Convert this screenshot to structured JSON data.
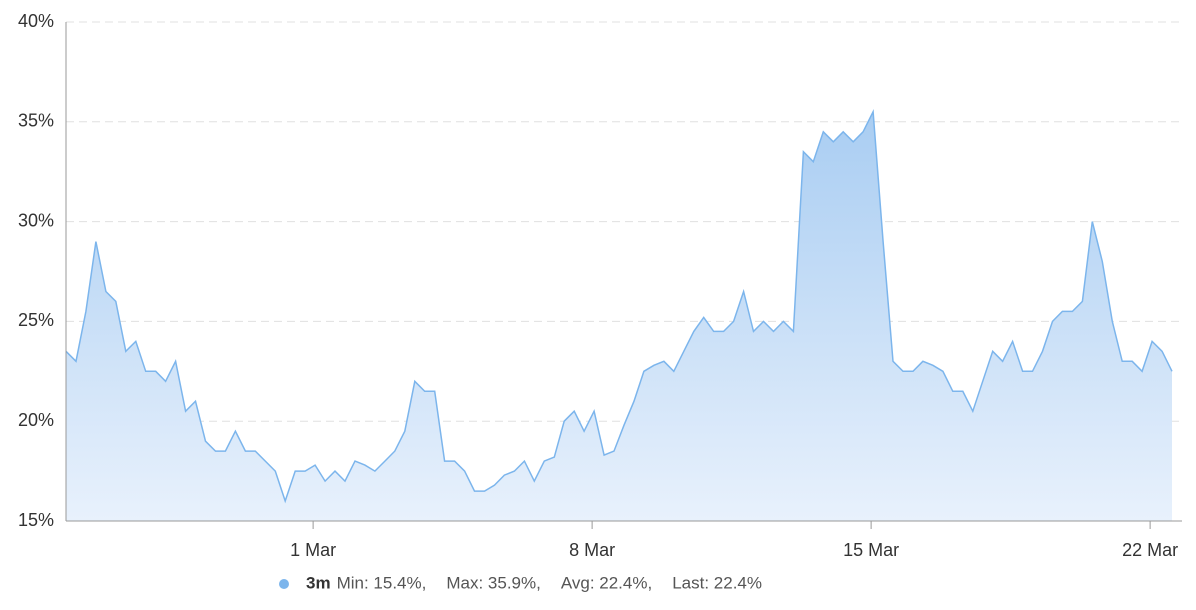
{
  "chart_data": {
    "type": "area",
    "x": [
      -6.2,
      -5.95,
      -5.7,
      -5.45,
      -5.2,
      -4.95,
      -4.7,
      -4.45,
      -4.2,
      -3.95,
      -3.7,
      -3.45,
      -3.2,
      -2.95,
      -2.7,
      -2.45,
      -2.2,
      -1.95,
      -1.7,
      -1.45,
      -1.2,
      -0.95,
      -0.7,
      -0.45,
      -0.2,
      0.05,
      0.3,
      0.55,
      0.8,
      1.05,
      1.3,
      1.55,
      1.8,
      2.05,
      2.3,
      2.55,
      2.8,
      3.05,
      3.3,
      3.55,
      3.8,
      4.05,
      4.3,
      4.55,
      4.8,
      5.05,
      5.3,
      5.55,
      5.8,
      6.05,
      6.3,
      6.55,
      6.8,
      7.05,
      7.3,
      7.55,
      7.8,
      8.05,
      8.3,
      8.55,
      8.8,
      9.05,
      9.3,
      9.55,
      9.8,
      10.05,
      10.3,
      10.55,
      10.8,
      11.05,
      11.3,
      11.55,
      11.8,
      12.05,
      12.3,
      12.55,
      12.8,
      13.05,
      13.3,
      13.55,
      13.8,
      14.05,
      14.3,
      14.55,
      14.8,
      15.05,
      15.3,
      15.55,
      15.8,
      16.05,
      16.3,
      16.55,
      16.8,
      17.05,
      17.3,
      17.55,
      17.8,
      18.05,
      18.3,
      18.55,
      18.8,
      19.05,
      19.3,
      19.55,
      19.8,
      20.05,
      20.3,
      20.55,
      20.8,
      21.05,
      21.3,
      21.55
    ],
    "series": [
      {
        "name": "3m",
        "color": "#7cb5ec",
        "values": [
          23.5,
          23,
          25.5,
          29,
          26.5,
          26,
          23.5,
          24,
          22.5,
          22.5,
          22,
          23,
          20.5,
          21,
          19,
          18.5,
          18.5,
          19.5,
          18.5,
          18.5,
          18,
          17.5,
          16,
          17.5,
          17.5,
          17.8,
          17,
          17.5,
          17,
          18,
          17.8,
          17.5,
          18,
          18.5,
          19.5,
          22,
          21.5,
          21.5,
          18,
          18,
          17.5,
          16.5,
          16.5,
          16.8,
          17.3,
          17.5,
          18,
          17,
          18,
          18.2,
          20,
          20.5,
          19.5,
          20.5,
          18.3,
          18.5,
          19.8,
          21,
          22.5,
          22.8,
          23,
          22.5,
          23.5,
          24.5,
          25.2,
          24.5,
          24.5,
          25,
          26.5,
          24.5,
          25,
          24.5,
          25,
          24.5,
          33.5,
          33,
          34.5,
          34,
          34.5,
          34,
          34.5,
          35.5,
          29,
          23,
          22.5,
          22.5,
          23,
          22.8,
          22.5,
          21.5,
          21.5,
          20.5,
          22,
          23.5,
          23,
          24,
          22.5,
          22.5,
          23.5,
          25,
          25.5,
          25.5,
          26,
          30,
          28,
          25,
          23,
          23,
          22.5,
          24,
          23.5,
          22.5
        ]
      }
    ],
    "legend_stats": [
      "Min: 15.4%,",
      "Max: 35.9%,",
      "Avg: 22.4%,",
      "Last: 22.4%"
    ],
    "xlim": [
      -6.2,
      21.8
    ],
    "xticks": [
      {
        "value": 0,
        "label": "1 Mar"
      },
      {
        "value": 7,
        "label": "8 Mar"
      },
      {
        "value": 14,
        "label": "15 Mar"
      },
      {
        "value": 21,
        "label": "22 Mar"
      }
    ],
    "ylim": [
      15,
      40
    ],
    "yticks": [
      {
        "value": 15,
        "label": "15%"
      },
      {
        "value": 20,
        "label": "20%"
      },
      {
        "value": 25,
        "label": "25%"
      },
      {
        "value": 30,
        "label": "30%"
      },
      {
        "value": 35,
        "label": "35%"
      },
      {
        "value": 40,
        "label": "40%"
      }
    ],
    "grid": true
  }
}
